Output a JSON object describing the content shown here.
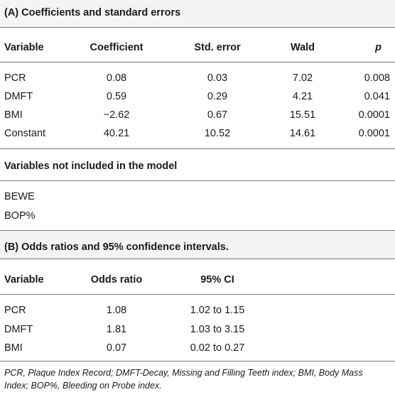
{
  "sectionA": {
    "title": "(A) Coefficients and standard errors",
    "headers": [
      "Variable",
      "Coefficient",
      "Std. error",
      "Wald",
      "p"
    ],
    "rows": [
      [
        "PCR",
        "0.08",
        "0.03",
        "7.02",
        "0.008"
      ],
      [
        "DMFT",
        "0.59",
        "0.29",
        "4.21",
        "0.041"
      ],
      [
        "BMI",
        "−2.62",
        "0.67",
        "15.51",
        "0.0001"
      ],
      [
        "Constant",
        "40.21",
        "10.52",
        "14.61",
        "0.0001"
      ]
    ]
  },
  "notIncluded": {
    "title": "Variables not included in the model",
    "items": [
      "BEWE",
      "BOP%"
    ]
  },
  "sectionB": {
    "title": "(B) Odds ratios and 95% confidence intervals.",
    "headers": [
      "Variable",
      "Odds ratio",
      "95% CI"
    ],
    "rows": [
      [
        "PCR",
        "1.08",
        "1.02 to 1.15"
      ],
      [
        "DMFT",
        "1.81",
        "1.03 to 3.15"
      ],
      [
        "BMI",
        "0.07",
        "0.02 to 0.27"
      ]
    ]
  },
  "footnote": "PCR, Plaque Index Record; DMFT-Decay, Missing and Filling Teeth index; BMI, Body Mass Index; BOP%, Bleeding on Probe index."
}
